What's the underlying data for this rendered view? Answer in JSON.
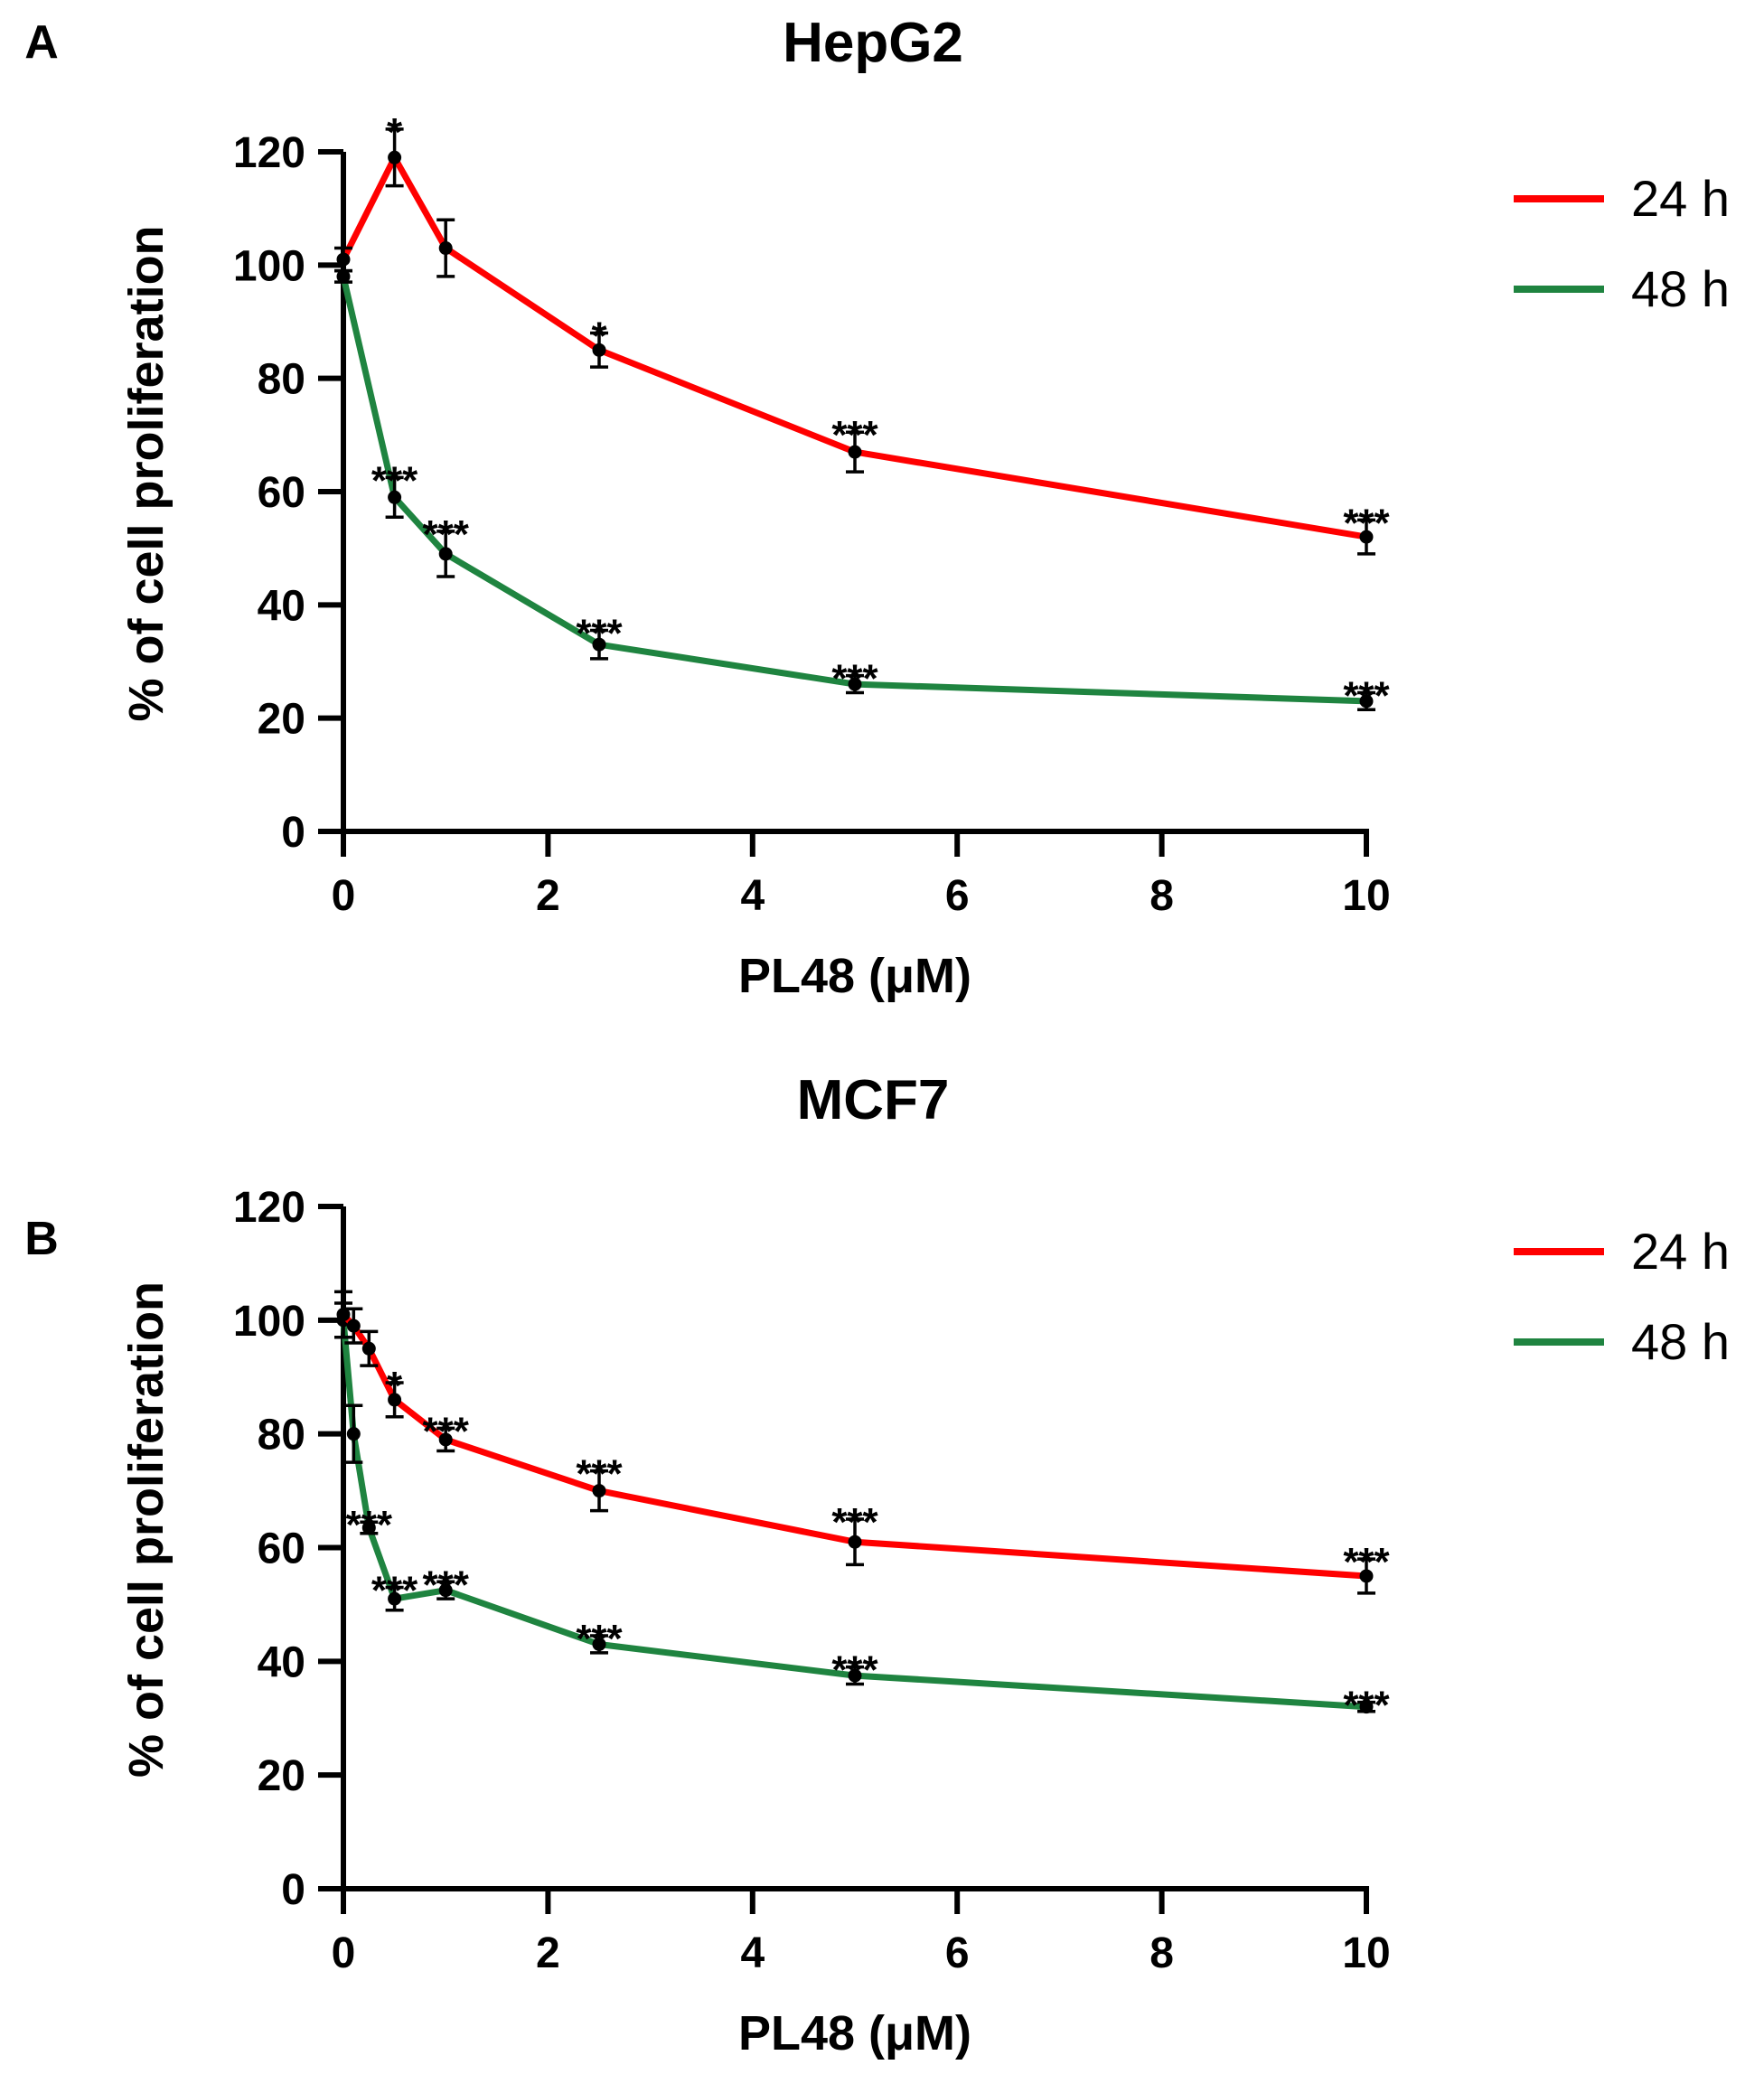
{
  "colors": {
    "h24": "#ff0000",
    "h48": "#1f8440",
    "axis": "#000000"
  },
  "legend": [
    {
      "label": "24 h",
      "color": "#ff0000"
    },
    {
      "label": "48 h",
      "color": "#1f8440"
    }
  ],
  "chart_data": [
    {
      "type": "line",
      "panel_label": "A",
      "title": "HepG2",
      "xlabel": "PL48 (μM)",
      "ylabel": "% of cell proliferation",
      "xlim": [
        0,
        10
      ],
      "ylim": [
        0,
        120
      ],
      "xticks": [
        0,
        2,
        4,
        6,
        8,
        10
      ],
      "yticks": [
        0,
        20,
        40,
        60,
        80,
        100,
        120
      ],
      "legend_position": "right",
      "series": [
        {
          "name": "24 h",
          "color": "#ff0000",
          "x": [
            0,
            0.5,
            1,
            2.5,
            5,
            10
          ],
          "y": [
            101,
            119,
            103,
            85,
            67,
            52
          ],
          "err": [
            2,
            5,
            5,
            3,
            3.5,
            3
          ],
          "sig": [
            "",
            "*",
            "",
            "*",
            "***",
            "***"
          ]
        },
        {
          "name": "48 h",
          "color": "#1f8440",
          "x": [
            0,
            0.5,
            1,
            2.5,
            5,
            10
          ],
          "y": [
            98,
            59,
            49,
            33,
            26,
            23
          ],
          "err": [
            1,
            3.5,
            4,
            2.5,
            1.5,
            1.5
          ],
          "sig": [
            "",
            "***",
            "***",
            "***",
            "***",
            "***"
          ]
        }
      ]
    },
    {
      "type": "line",
      "panel_label": "B",
      "title": "MCF7",
      "xlabel": "PL48 (μM)",
      "ylabel": "% of cell proliferation",
      "xlim": [
        0,
        10
      ],
      "ylim": [
        0,
        120
      ],
      "xticks": [
        0,
        2,
        4,
        6,
        8,
        10
      ],
      "yticks": [
        0,
        20,
        40,
        60,
        80,
        100,
        120
      ],
      "legend_position": "right",
      "series": [
        {
          "name": "24 h",
          "color": "#ff0000",
          "x": [
            0,
            0.1,
            0.25,
            0.5,
            1,
            2.5,
            5,
            10
          ],
          "y": [
            101,
            99,
            95,
            86,
            79,
            70,
            61,
            55
          ],
          "err": [
            4,
            3,
            3,
            3,
            2,
            3.5,
            4,
            3
          ],
          "sig": [
            "",
            "",
            "",
            "*",
            "***",
            "***",
            "***",
            "***"
          ]
        },
        {
          "name": "48 h",
          "color": "#1f8440",
          "x": [
            0,
            0.1,
            0.25,
            0.5,
            1,
            2.5,
            5,
            10
          ],
          "y": [
            100,
            80,
            63.5,
            51,
            52.5,
            43,
            37.5,
            32
          ],
          "err": [
            3,
            5,
            1,
            2,
            1.5,
            1.5,
            1.5,
            0.8
          ],
          "sig": [
            "",
            "",
            "***",
            "***",
            "***",
            "***",
            "***",
            "***"
          ]
        }
      ]
    }
  ]
}
